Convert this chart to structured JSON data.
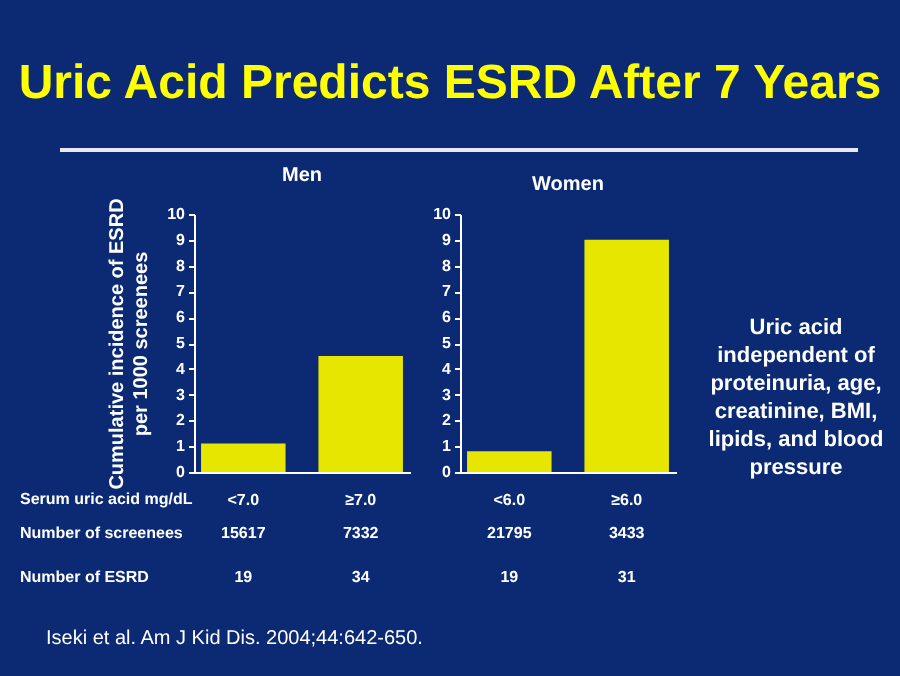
{
  "chart_data": [
    {
      "type": "bar",
      "title": "Men",
      "ylabel": "Cumulative incidence of ESRD\nper 1000 screenees",
      "xlabel": "Serum uric acid mg/dL",
      "categories": [
        "<7.0",
        "≥7.0"
      ],
      "values": [
        1.1,
        4.5
      ],
      "color": "#e6e600",
      "ylim": [
        0,
        10
      ],
      "yticks": [
        0,
        1,
        2,
        3,
        4,
        5,
        6,
        7,
        8,
        9,
        10
      ],
      "grid": false,
      "annotations": [
        "Number of screenees",
        "15617",
        "7332",
        "Number of ESRD",
        "19",
        "34"
      ]
    },
    {
      "type": "bar",
      "title": "Women",
      "categories": [
        "<6.0",
        "≥6.0"
      ],
      "values": [
        0.8,
        9.0
      ],
      "color": "#e6e600",
      "ylim": [
        0,
        10
      ],
      "yticks": [
        0,
        1,
        2,
        3,
        4,
        5,
        6,
        7,
        8,
        9,
        10
      ],
      "grid": false,
      "annotations": [
        "21795",
        "3433",
        "19",
        "31"
      ]
    },
    {
      "type": "other",
      "title": "Uric Acid Predicts ESRD After 7 Years",
      "annotations": [
        "Uric acid independent of proteinuria, age, creatinine, BMI, lipids, and blood pressure",
        "Iseki et al. Am J Kid Dis. 2004;44:642-650."
      ]
    }
  ]
}
